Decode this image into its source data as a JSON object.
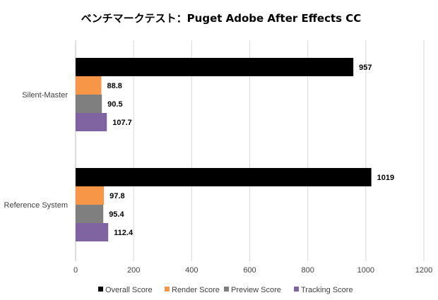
{
  "chart_data": {
    "type": "bar",
    "orientation": "horizontal",
    "title": "ベンチマークテスト：Puget Adobe After Effects CC",
    "xlabel": "",
    "ylabel": "",
    "xlim": [
      0,
      1200
    ],
    "x_ticks": [
      0,
      200,
      400,
      600,
      800,
      1000,
      1200
    ],
    "grid": true,
    "legend_position": "bottom",
    "categories": [
      "Silent-Master",
      "Reference System"
    ],
    "series": [
      {
        "name": "Overall Score",
        "color": "#000000",
        "values": [
          957,
          1019
        ],
        "labels": [
          "957",
          "1019"
        ]
      },
      {
        "name": "Render Score",
        "color": "#f79646",
        "values": [
          88.8,
          97.8
        ],
        "labels": [
          "88.8",
          "97.8"
        ]
      },
      {
        "name": "Preview Score",
        "color": "#7f7f7f",
        "values": [
          90.5,
          95.4
        ],
        "labels": [
          "90.5",
          "95.4"
        ]
      },
      {
        "name": "Tracking Score",
        "color": "#8064a2",
        "values": [
          107.7,
          112.4
        ],
        "labels": [
          "107.7",
          "112.4"
        ]
      }
    ]
  }
}
